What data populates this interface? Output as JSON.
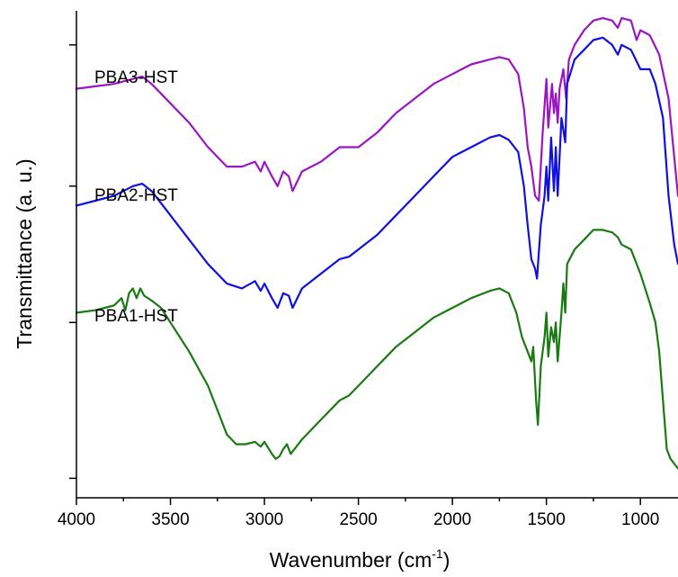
{
  "chart_data": {
    "type": "line",
    "title": "",
    "xlabel": "Wavenumber (cm",
    "xlabel_sup": "-1",
    "xlabel_end": ")",
    "ylabel": "Transmittance (a. u.)",
    "xlim": [
      4000,
      800
    ],
    "ylim": [
      0,
      1
    ],
    "x_reversed": true,
    "x_ticks": [
      4000,
      3500,
      3000,
      2500,
      2000,
      1500,
      1000
    ],
    "x_tick_labels": [
      "4000",
      "3500",
      "3000",
      "2500",
      "2000",
      "1500",
      "1000"
    ],
    "y_ticks": [
      0.04,
      0.36,
      0.64,
      0.93
    ],
    "y_tick_labels_shown": false,
    "series": [
      {
        "name": "PBA3-HST",
        "color": "#9b15c4",
        "points": [
          [
            4000,
            0.84
          ],
          [
            3900,
            0.845
          ],
          [
            3800,
            0.85
          ],
          [
            3700,
            0.86
          ],
          [
            3650,
            0.865
          ],
          [
            3600,
            0.85
          ],
          [
            3500,
            0.81
          ],
          [
            3400,
            0.77
          ],
          [
            3300,
            0.72
          ],
          [
            3200,
            0.68
          ],
          [
            3120,
            0.68
          ],
          [
            3050,
            0.69
          ],
          [
            3020,
            0.67
          ],
          [
            3000,
            0.69
          ],
          [
            2960,
            0.66
          ],
          [
            2930,
            0.64
          ],
          [
            2900,
            0.67
          ],
          [
            2870,
            0.66
          ],
          [
            2850,
            0.63
          ],
          [
            2800,
            0.67
          ],
          [
            2700,
            0.69
          ],
          [
            2600,
            0.72
          ],
          [
            2500,
            0.72
          ],
          [
            2400,
            0.75
          ],
          [
            2300,
            0.79
          ],
          [
            2200,
            0.82
          ],
          [
            2100,
            0.85
          ],
          [
            2000,
            0.87
          ],
          [
            1900,
            0.89
          ],
          [
            1800,
            0.9
          ],
          [
            1750,
            0.905
          ],
          [
            1700,
            0.9
          ],
          [
            1650,
            0.87
          ],
          [
            1620,
            0.8
          ],
          [
            1600,
            0.72
          ],
          [
            1580,
            0.68
          ],
          [
            1560,
            0.62
          ],
          [
            1540,
            0.61
          ],
          [
            1520,
            0.75
          ],
          [
            1500,
            0.86
          ],
          [
            1490,
            0.76
          ],
          [
            1470,
            0.85
          ],
          [
            1460,
            0.79
          ],
          [
            1450,
            0.83
          ],
          [
            1440,
            0.77
          ],
          [
            1430,
            0.84
          ],
          [
            1410,
            0.88
          ],
          [
            1395,
            0.82
          ],
          [
            1380,
            0.9
          ],
          [
            1350,
            0.93
          ],
          [
            1300,
            0.96
          ],
          [
            1250,
            0.98
          ],
          [
            1200,
            0.985
          ],
          [
            1150,
            0.98
          ],
          [
            1120,
            0.965
          ],
          [
            1100,
            0.985
          ],
          [
            1050,
            0.98
          ],
          [
            1020,
            0.94
          ],
          [
            1000,
            0.96
          ],
          [
            950,
            0.95
          ],
          [
            900,
            0.91
          ],
          [
            850,
            0.82
          ],
          [
            820,
            0.7
          ],
          [
            800,
            0.62
          ]
        ]
      },
      {
        "name": "PBA2-HST",
        "color": "#1010e0",
        "points": [
          [
            4000,
            0.6
          ],
          [
            3900,
            0.61
          ],
          [
            3800,
            0.62
          ],
          [
            3700,
            0.64
          ],
          [
            3650,
            0.645
          ],
          [
            3600,
            0.63
          ],
          [
            3500,
            0.58
          ],
          [
            3400,
            0.53
          ],
          [
            3300,
            0.48
          ],
          [
            3200,
            0.44
          ],
          [
            3120,
            0.43
          ],
          [
            3050,
            0.445
          ],
          [
            3020,
            0.425
          ],
          [
            3000,
            0.44
          ],
          [
            2960,
            0.41
          ],
          [
            2930,
            0.39
          ],
          [
            2900,
            0.42
          ],
          [
            2870,
            0.415
          ],
          [
            2850,
            0.39
          ],
          [
            2800,
            0.43
          ],
          [
            2700,
            0.46
          ],
          [
            2600,
            0.49
          ],
          [
            2550,
            0.495
          ],
          [
            2500,
            0.51
          ],
          [
            2400,
            0.54
          ],
          [
            2300,
            0.58
          ],
          [
            2200,
            0.62
          ],
          [
            2100,
            0.66
          ],
          [
            2000,
            0.7
          ],
          [
            1900,
            0.72
          ],
          [
            1800,
            0.74
          ],
          [
            1750,
            0.745
          ],
          [
            1700,
            0.735
          ],
          [
            1650,
            0.71
          ],
          [
            1620,
            0.64
          ],
          [
            1600,
            0.56
          ],
          [
            1580,
            0.49
          ],
          [
            1560,
            0.47
          ],
          [
            1550,
            0.45
          ],
          [
            1530,
            0.56
          ],
          [
            1510,
            0.62
          ],
          [
            1500,
            0.68
          ],
          [
            1490,
            0.61
          ],
          [
            1475,
            0.74
          ],
          [
            1460,
            0.63
          ],
          [
            1450,
            0.72
          ],
          [
            1440,
            0.62
          ],
          [
            1420,
            0.78
          ],
          [
            1400,
            0.73
          ],
          [
            1390,
            0.85
          ],
          [
            1350,
            0.9
          ],
          [
            1300,
            0.92
          ],
          [
            1250,
            0.94
          ],
          [
            1200,
            0.945
          ],
          [
            1150,
            0.93
          ],
          [
            1120,
            0.91
          ],
          [
            1100,
            0.93
          ],
          [
            1050,
            0.92
          ],
          [
            1000,
            0.88
          ],
          [
            950,
            0.88
          ],
          [
            920,
            0.85
          ],
          [
            880,
            0.78
          ],
          [
            850,
            0.62
          ],
          [
            820,
            0.52
          ],
          [
            800,
            0.48
          ]
        ]
      },
      {
        "name": "PBA1-HST",
        "color": "#1a7a12",
        "points": [
          [
            4000,
            0.38
          ],
          [
            3900,
            0.385
          ],
          [
            3850,
            0.39
          ],
          [
            3800,
            0.395
          ],
          [
            3760,
            0.41
          ],
          [
            3740,
            0.385
          ],
          [
            3720,
            0.42
          ],
          [
            3700,
            0.43
          ],
          [
            3680,
            0.41
          ],
          [
            3660,
            0.43
          ],
          [
            3640,
            0.415
          ],
          [
            3600,
            0.405
          ],
          [
            3550,
            0.39
          ],
          [
            3500,
            0.36
          ],
          [
            3400,
            0.3
          ],
          [
            3300,
            0.23
          ],
          [
            3250,
            0.18
          ],
          [
            3200,
            0.13
          ],
          [
            3150,
            0.11
          ],
          [
            3100,
            0.11
          ],
          [
            3050,
            0.115
          ],
          [
            3020,
            0.105
          ],
          [
            3000,
            0.115
          ],
          [
            2960,
            0.09
          ],
          [
            2940,
            0.08
          ],
          [
            2920,
            0.085
          ],
          [
            2900,
            0.1
          ],
          [
            2880,
            0.11
          ],
          [
            2860,
            0.09
          ],
          [
            2800,
            0.12
          ],
          [
            2700,
            0.16
          ],
          [
            2600,
            0.2
          ],
          [
            2550,
            0.21
          ],
          [
            2500,
            0.23
          ],
          [
            2400,
            0.27
          ],
          [
            2300,
            0.31
          ],
          [
            2200,
            0.34
          ],
          [
            2100,
            0.37
          ],
          [
            2000,
            0.39
          ],
          [
            1900,
            0.41
          ],
          [
            1800,
            0.425
          ],
          [
            1750,
            0.43
          ],
          [
            1700,
            0.42
          ],
          [
            1660,
            0.38
          ],
          [
            1630,
            0.33
          ],
          [
            1600,
            0.3
          ],
          [
            1580,
            0.28
          ],
          [
            1570,
            0.31
          ],
          [
            1555,
            0.2
          ],
          [
            1545,
            0.15
          ],
          [
            1530,
            0.27
          ],
          [
            1510,
            0.33
          ],
          [
            1500,
            0.38
          ],
          [
            1490,
            0.29
          ],
          [
            1475,
            0.35
          ],
          [
            1460,
            0.32
          ],
          [
            1450,
            0.36
          ],
          [
            1440,
            0.28
          ],
          [
            1420,
            0.38
          ],
          [
            1410,
            0.44
          ],
          [
            1400,
            0.38
          ],
          [
            1390,
            0.48
          ],
          [
            1350,
            0.51
          ],
          [
            1300,
            0.53
          ],
          [
            1250,
            0.55
          ],
          [
            1200,
            0.55
          ],
          [
            1150,
            0.545
          ],
          [
            1120,
            0.535
          ],
          [
            1100,
            0.52
          ],
          [
            1050,
            0.51
          ],
          [
            1000,
            0.46
          ],
          [
            950,
            0.4
          ],
          [
            920,
            0.36
          ],
          [
            900,
            0.3
          ],
          [
            880,
            0.2
          ],
          [
            860,
            0.1
          ],
          [
            840,
            0.08
          ],
          [
            800,
            0.06
          ]
        ]
      }
    ]
  }
}
